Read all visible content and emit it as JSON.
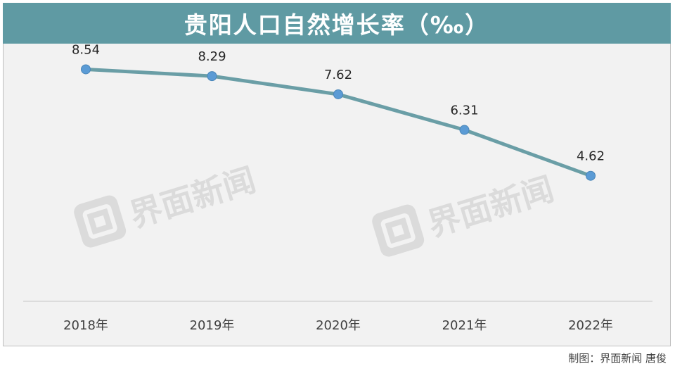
{
  "title": "贵阳人口自然增长率（‰）",
  "watermark": {
    "logo_icon": "jiemian-logo-icon",
    "text": "界面新闻"
  },
  "credit": "制图：界面新闻 唐俊",
  "colors": {
    "title_bg": "#5f9aa3",
    "line": "#6a9ea6",
    "marker": "#5b9bd5",
    "plot_bg": "#f2f2f2"
  },
  "chart_data": {
    "type": "line",
    "title": "贵阳人口自然增长率（‰）",
    "categories": [
      "2018年",
      "2019年",
      "2020年",
      "2021年",
      "2022年"
    ],
    "series": [
      {
        "values": [
          8.54,
          8.29,
          7.62,
          6.31,
          4.62
        ]
      }
    ],
    "data_labels": [
      "8.54",
      "8.29",
      "7.62",
      "6.31",
      "4.62"
    ],
    "ylim": [
      0,
      9.2
    ],
    "xlabel": "",
    "ylabel": "",
    "grid": false,
    "legend": "none"
  }
}
